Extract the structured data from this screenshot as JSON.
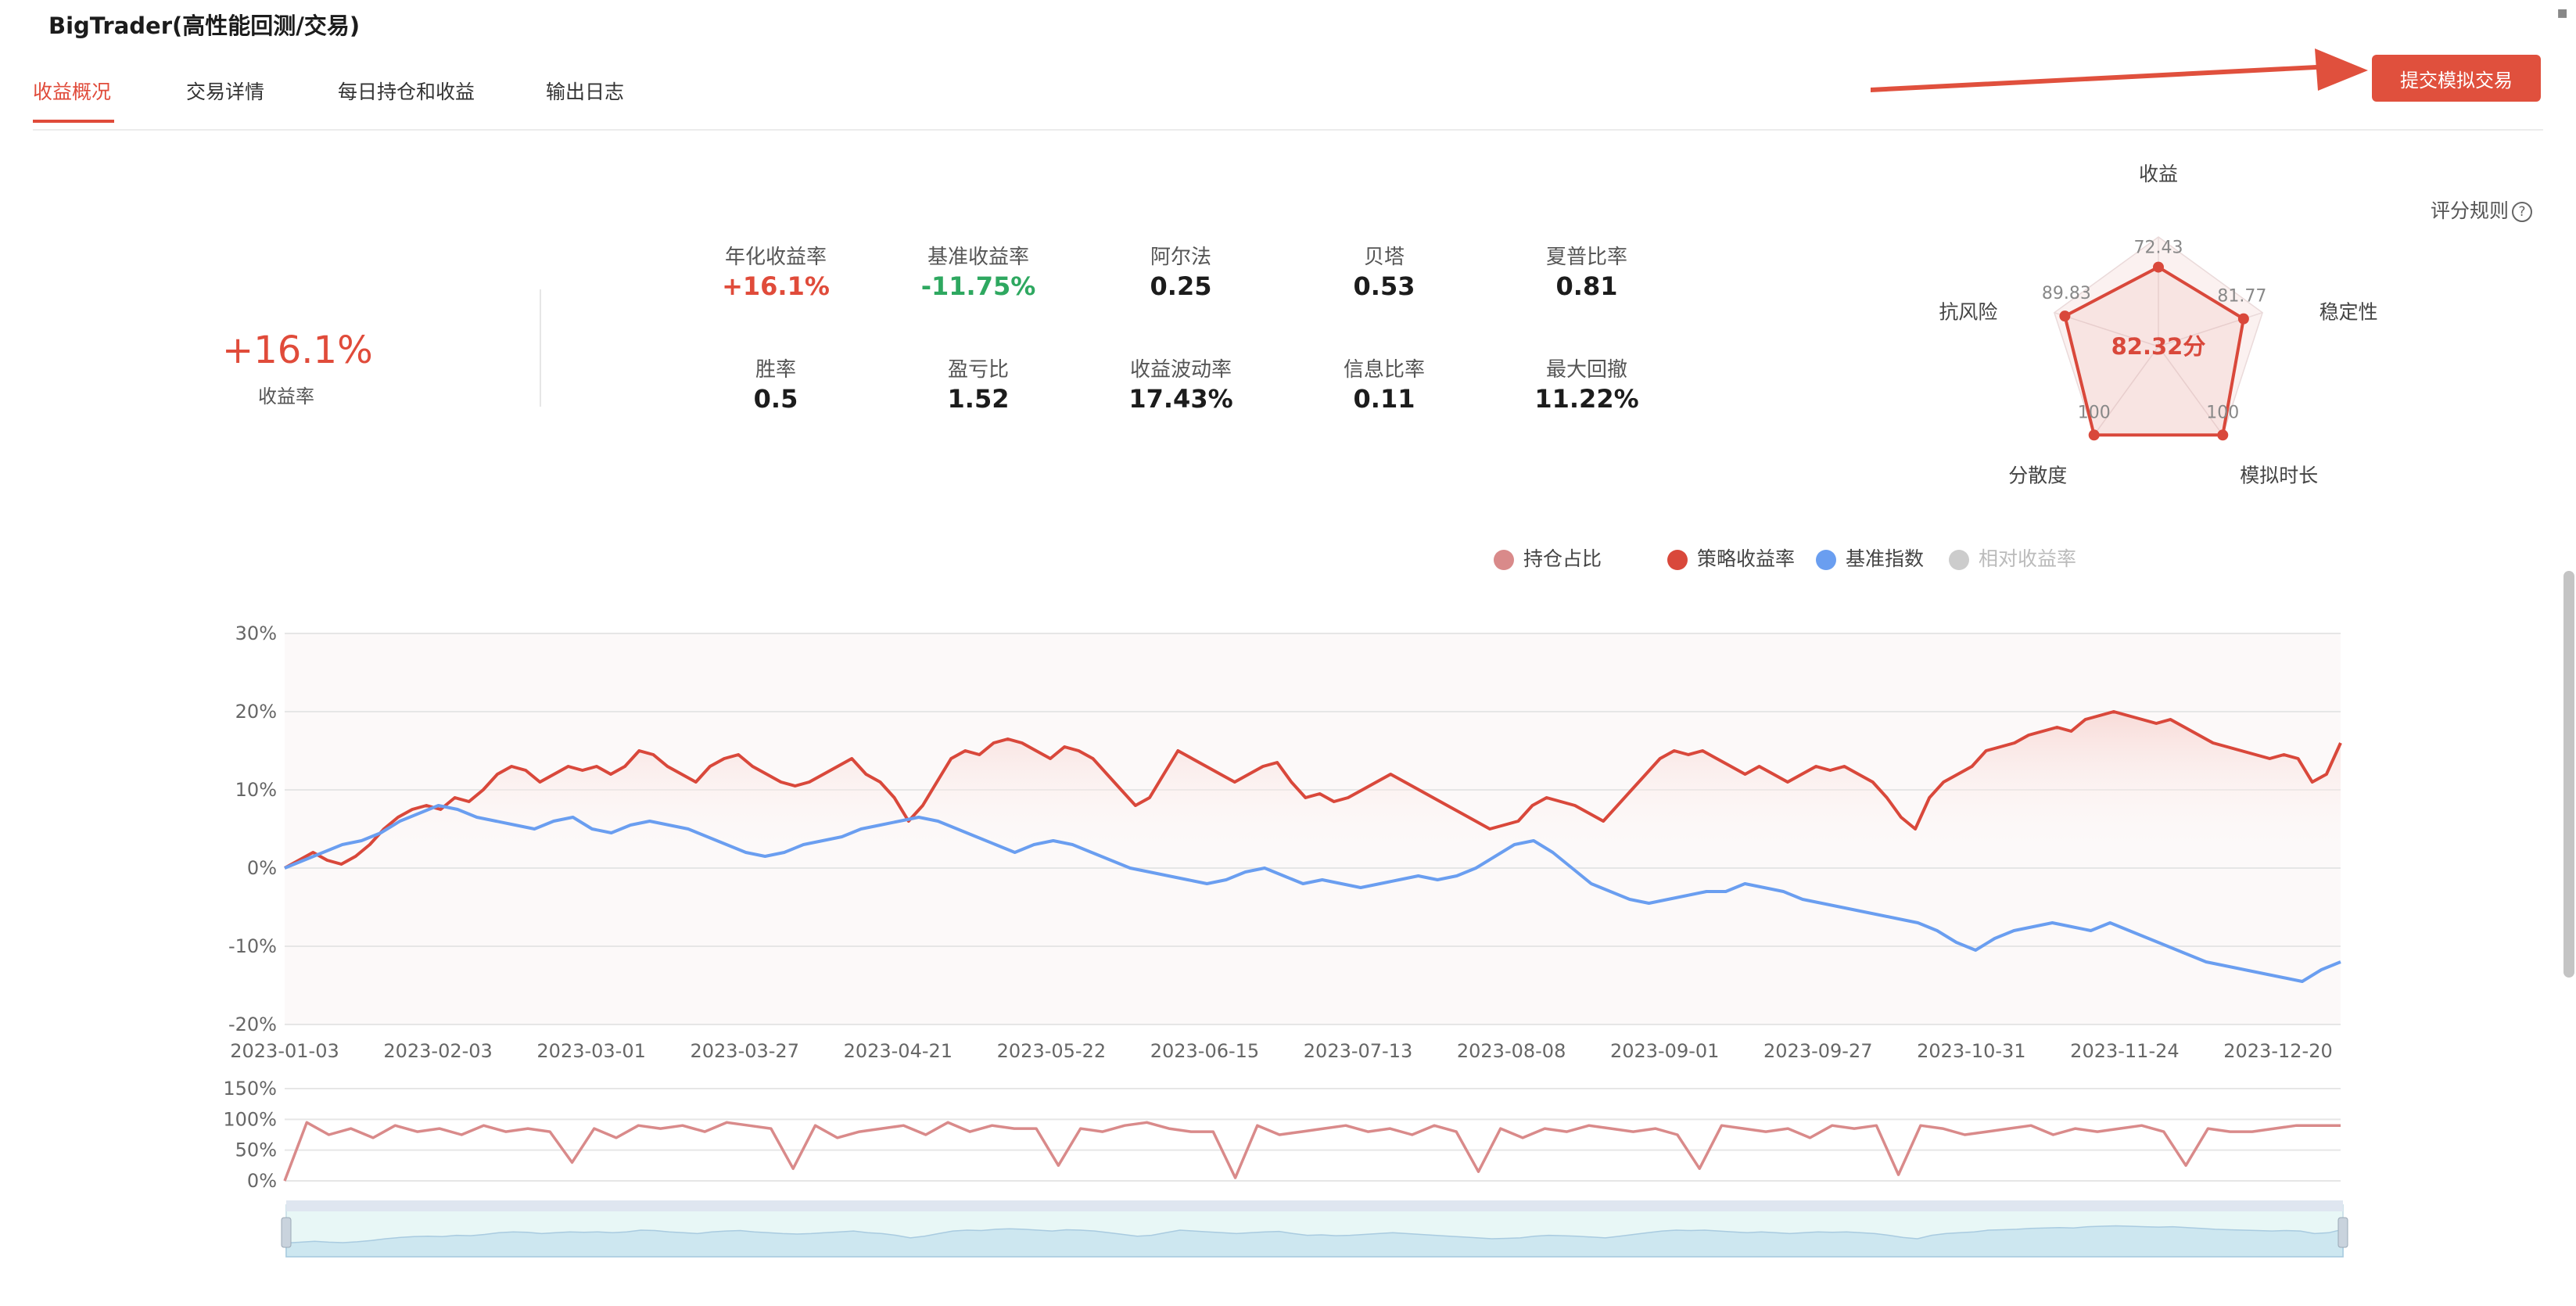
{
  "app": {
    "title": "BigTrader(高性能回测/交易)"
  },
  "tabs": [
    {
      "label": "收益概况",
      "active": true
    },
    {
      "label": "交易详情",
      "active": false
    },
    {
      "label": "每日持仓和收益",
      "active": false
    },
    {
      "label": "输出日志",
      "active": false
    }
  ],
  "submit_button": "提交模拟交易",
  "summary": {
    "value": "+16.1%",
    "label": "收益率"
  },
  "metrics": [
    {
      "label": "年化收益率",
      "value": "+16.1%",
      "tone": "pos"
    },
    {
      "label": "基准收益率",
      "value": "-11.75%",
      "tone": "neg"
    },
    {
      "label": "阿尔法",
      "value": "0.25",
      "tone": ""
    },
    {
      "label": "贝塔",
      "value": "0.53",
      "tone": ""
    },
    {
      "label": "夏普比率",
      "value": "0.81",
      "tone": ""
    },
    {
      "label": "胜率",
      "value": "0.5",
      "tone": ""
    },
    {
      "label": "盈亏比",
      "value": "1.52",
      "tone": ""
    },
    {
      "label": "收益波动率",
      "value": "17.43%",
      "tone": ""
    },
    {
      "label": "信息比率",
      "value": "0.11",
      "tone": ""
    },
    {
      "label": "最大回撤",
      "value": "11.22%",
      "tone": ""
    }
  ],
  "score_rule": "评分规则",
  "radar": {
    "score": "82.32分",
    "axes": [
      {
        "name": "收益",
        "value": 72.43,
        "value_label": "72.43"
      },
      {
        "name": "稳定性",
        "value": 81.77,
        "value_label": "81.77"
      },
      {
        "name": "模拟时长",
        "value": 100,
        "value_label": "100"
      },
      {
        "name": "分散度",
        "value": 100,
        "value_label": "100"
      },
      {
        "name": "抗风险",
        "value": 89.83,
        "value_label": "89.83"
      }
    ],
    "color": "#d9483b"
  },
  "legend": [
    {
      "name": "持仓占比",
      "color": "#d98a8a",
      "active": true
    },
    {
      "name": "策略收益率",
      "color": "#d9483b",
      "active": true
    },
    {
      "name": "基准指数",
      "color": "#6a9ef0",
      "active": true
    },
    {
      "name": "相对收益率",
      "color": "#cccccc",
      "active": false
    }
  ],
  "chart_data": [
    {
      "type": "line",
      "x_tick_labels": [
        "2023-01-03",
        "2023-02-03",
        "2023-03-01",
        "2023-03-27",
        "2023-04-21",
        "2023-05-22",
        "2023-06-15",
        "2023-07-13",
        "2023-08-08",
        "2023-09-01",
        "2023-09-27",
        "2023-10-31",
        "2023-11-24",
        "2023-12-20"
      ],
      "y_tick_labels": [
        "30%",
        "20%",
        "10%",
        "0%",
        "-10%",
        "-20%"
      ],
      "ylim": [
        -20,
        30
      ],
      "unit": "%",
      "series": [
        {
          "name": "策略收益率",
          "color": "#d9483b",
          "values": [
            0,
            1,
            2,
            1,
            0.5,
            1.5,
            3,
            5,
            6.5,
            7.5,
            8,
            7.5,
            9,
            8.5,
            10,
            12,
            13,
            12.5,
            11,
            12,
            13,
            12.5,
            13,
            12,
            13,
            15,
            14.5,
            13,
            12,
            11,
            13,
            14,
            14.5,
            13,
            12,
            11,
            10.5,
            11,
            12,
            13,
            14,
            12,
            11,
            9,
            6,
            8,
            11,
            14,
            15,
            14.5,
            16,
            16.5,
            16,
            15,
            14,
            15.5,
            15,
            14,
            12,
            10,
            8,
            9,
            12,
            15,
            14,
            13,
            12,
            11,
            12,
            13,
            13.5,
            11,
            9,
            9.5,
            8.5,
            9,
            10,
            11,
            12,
            11,
            10,
            9,
            8,
            7,
            6,
            5,
            5.5,
            6,
            8,
            9,
            8.5,
            8,
            7,
            6,
            8,
            10,
            12,
            14,
            15,
            14.5,
            15,
            14,
            13,
            12,
            13,
            12,
            11,
            12,
            13,
            12.5,
            13,
            12,
            11,
            9,
            6.5,
            5,
            9,
            11,
            12,
            13,
            15,
            15.5,
            16,
            17,
            17.5,
            18,
            17.5,
            19,
            19.5,
            20,
            19.5,
            19,
            18.5,
            19,
            18,
            17,
            16,
            15.5,
            15,
            14.5,
            14,
            14.5,
            14,
            11,
            12,
            16
          ]
        },
        {
          "name": "基准指数",
          "color": "#6a9ef0",
          "values": [
            0,
            1,
            2,
            3,
            3.5,
            4.5,
            6,
            7,
            8,
            7.5,
            6.5,
            6,
            5.5,
            5,
            6,
            6.5,
            5,
            4.5,
            5.5,
            6,
            5.5,
            5,
            4,
            3,
            2,
            1.5,
            2,
            3,
            3.5,
            4,
            5,
            5.5,
            6,
            6.5,
            6,
            5,
            4,
            3,
            2,
            3,
            3.5,
            3,
            2,
            1,
            0,
            -0.5,
            -1,
            -1.5,
            -2,
            -1.5,
            -0.5,
            0,
            -1,
            -2,
            -1.5,
            -2,
            -2.5,
            -2,
            -1.5,
            -1,
            -1.5,
            -1,
            0,
            1.5,
            3,
            3.5,
            2,
            0,
            -2,
            -3,
            -4,
            -4.5,
            -4,
            -3.5,
            -3,
            -3,
            -2,
            -2.5,
            -3,
            -4,
            -4.5,
            -5,
            -5.5,
            -6,
            -6.5,
            -7,
            -8,
            -9.5,
            -10.5,
            -9,
            -8,
            -7.5,
            -7,
            -7.5,
            -8,
            -7,
            -8,
            -9,
            -10,
            -11,
            -12,
            -12.5,
            -13,
            -13.5,
            -14,
            -14.5,
            -13,
            -12
          ]
        }
      ]
    },
    {
      "type": "line",
      "y_tick_labels": [
        "150%",
        "100%",
        "50%",
        "0%"
      ],
      "ylim": [
        0,
        150
      ],
      "unit": "%",
      "series": [
        {
          "name": "持仓占比",
          "color": "#d98a8a",
          "values": [
            0,
            95,
            75,
            85,
            70,
            90,
            80,
            85,
            75,
            90,
            80,
            85,
            80,
            30,
            85,
            70,
            90,
            85,
            90,
            80,
            95,
            90,
            85,
            20,
            90,
            70,
            80,
            85,
            90,
            75,
            95,
            80,
            90,
            85,
            85,
            25,
            85,
            80,
            90,
            95,
            85,
            80,
            80,
            5,
            90,
            75,
            80,
            85,
            90,
            80,
            85,
            75,
            90,
            80,
            15,
            85,
            70,
            85,
            80,
            90,
            85,
            80,
            85,
            75,
            20,
            90,
            85,
            80,
            85,
            70,
            90,
            85,
            90,
            10,
            90,
            85,
            75,
            80,
            85,
            90,
            75,
            85,
            80,
            85,
            90,
            80,
            25,
            85,
            80,
            80,
            85,
            90,
            90,
            90
          ]
        }
      ]
    }
  ]
}
